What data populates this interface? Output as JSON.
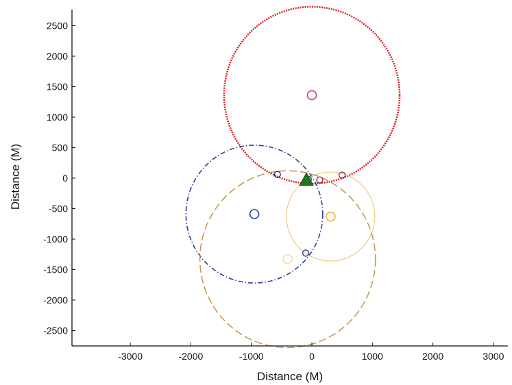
{
  "chart_data": {
    "type": "scatter",
    "title": "",
    "xlabel": "Distance (M)",
    "ylabel": "Distance (M)",
    "xlim": [
      -3800,
      3200
    ],
    "ylim": [
      -2750,
      2750
    ],
    "xticks": [
      -3000,
      -2000,
      -1000,
      0,
      1000,
      2000,
      3000
    ],
    "yticks": [
      2500,
      2000,
      1500,
      1000,
      500,
      0,
      -500,
      -1000,
      -1500,
      -2000,
      -2500
    ],
    "grid": false,
    "legend": "none",
    "circles": [
      {
        "cx": 0,
        "cy": 1360,
        "r": 1450,
        "color": "#e0202a",
        "style": "dotted-thick"
      },
      {
        "cx": -950,
        "cy": -590,
        "r": 1130,
        "color": "#2a3f9a",
        "style": "dash-dot"
      },
      {
        "cx": 310,
        "cy": -630,
        "r": 730,
        "color": "#e8c56a",
        "style": "solid-thin"
      },
      {
        "cx": -400,
        "cy": -1330,
        "r": 1450,
        "color": "#c9924a",
        "style": "dashed"
      }
    ],
    "centers": [
      {
        "x": 0,
        "y": 1360,
        "color": "#d0405a"
      },
      {
        "x": -950,
        "y": -590,
        "color": "#2a3f9a"
      },
      {
        "x": 310,
        "y": -630,
        "color": "#e0b040"
      },
      {
        "x": -400,
        "y": -1330,
        "color": "#f0e0a0"
      }
    ],
    "intersections": [
      {
        "x": -570,
        "y": 60,
        "color": "#2a2a7a"
      },
      {
        "x": -100,
        "y": -1230,
        "color": "#2a3f9a"
      },
      {
        "x": 130,
        "y": -30,
        "color": "#8a2a4a"
      },
      {
        "x": 500,
        "y": 50,
        "color": "#8a2a4a"
      },
      {
        "x": -60,
        "y": -20,
        "color": "#2a2a7a"
      }
    ],
    "estimate": {
      "x": -90,
      "y": -30,
      "color": "#1a7a1a",
      "marker": "triangle"
    }
  }
}
